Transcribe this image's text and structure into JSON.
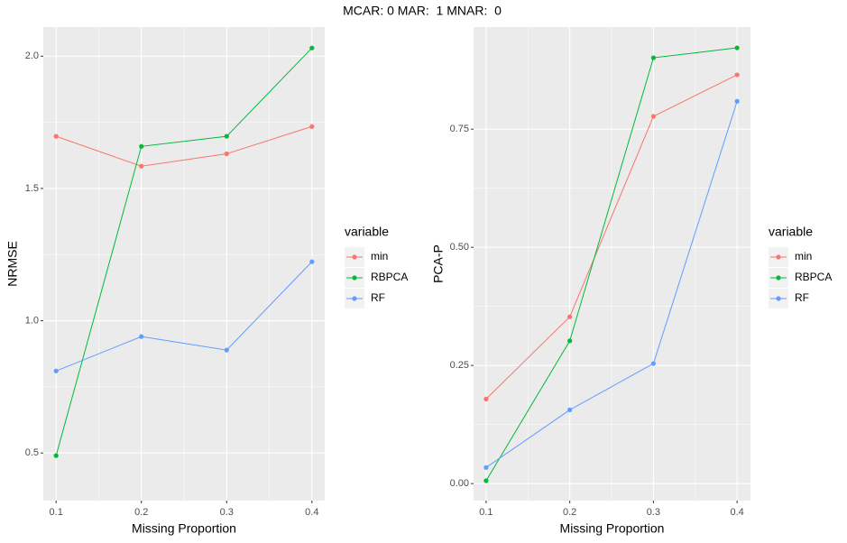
{
  "title": "MCAR: 0 MAR:  1 MNAR:  0",
  "chart_data": [
    {
      "type": "line",
      "xlabel": "Missing Proportion",
      "ylabel": "NRMSE",
      "legend_title": "variable",
      "x": [
        0.1,
        0.2,
        0.3,
        0.4
      ],
      "series": [
        {
          "name": "min",
          "color": "#F8766D",
          "values": [
            1.697,
            1.584,
            1.631,
            1.734
          ]
        },
        {
          "name": "RBPCA",
          "color": "#00BA38",
          "values": [
            0.49,
            1.659,
            1.697,
            2.031
          ]
        },
        {
          "name": "RF",
          "color": "#619CFF",
          "values": [
            0.81,
            0.94,
            0.889,
            1.223
          ]
        }
      ],
      "xlim": [
        0.085,
        0.415
      ],
      "xticks": [
        0.1,
        0.2,
        0.3,
        0.4
      ],
      "ylim": [
        0.32,
        2.11
      ],
      "yticks": [
        {
          "value": 0.5,
          "label": "0.5"
        },
        {
          "value": 1,
          "label": "1.0"
        },
        {
          "value": 1.5,
          "label": "1.5"
        },
        {
          "value": 2,
          "label": "2.0"
        }
      ],
      "grid": true,
      "legend": "right"
    },
    {
      "type": "line",
      "xlabel": "Missing Proportion",
      "ylabel": "PCA-P",
      "legend_title": "variable",
      "x": [
        0.1,
        0.2,
        0.3,
        0.4
      ],
      "series": [
        {
          "name": "min",
          "color": "#F8766D",
          "values": [
            0.179,
            0.353,
            0.777,
            0.865
          ]
        },
        {
          "name": "RBPCA",
          "color": "#00BA38",
          "values": [
            0.006,
            0.302,
            0.901,
            0.922
          ]
        },
        {
          "name": "RF",
          "color": "#619CFF",
          "values": [
            0.034,
            0.156,
            0.254,
            0.809
          ]
        }
      ],
      "xlim": [
        0.085,
        0.416
      ],
      "xticks": [
        0.1,
        0.2,
        0.3,
        0.4
      ],
      "ylim": [
        -0.036,
        0.966
      ],
      "yticks": [
        {
          "value": 0,
          "label": "0.00"
        },
        {
          "value": 0.25,
          "label": "0.25"
        },
        {
          "value": 0.5,
          "label": "0.50"
        },
        {
          "value": 0.75,
          "label": "0.75"
        }
      ],
      "grid": true,
      "legend": "right"
    }
  ]
}
